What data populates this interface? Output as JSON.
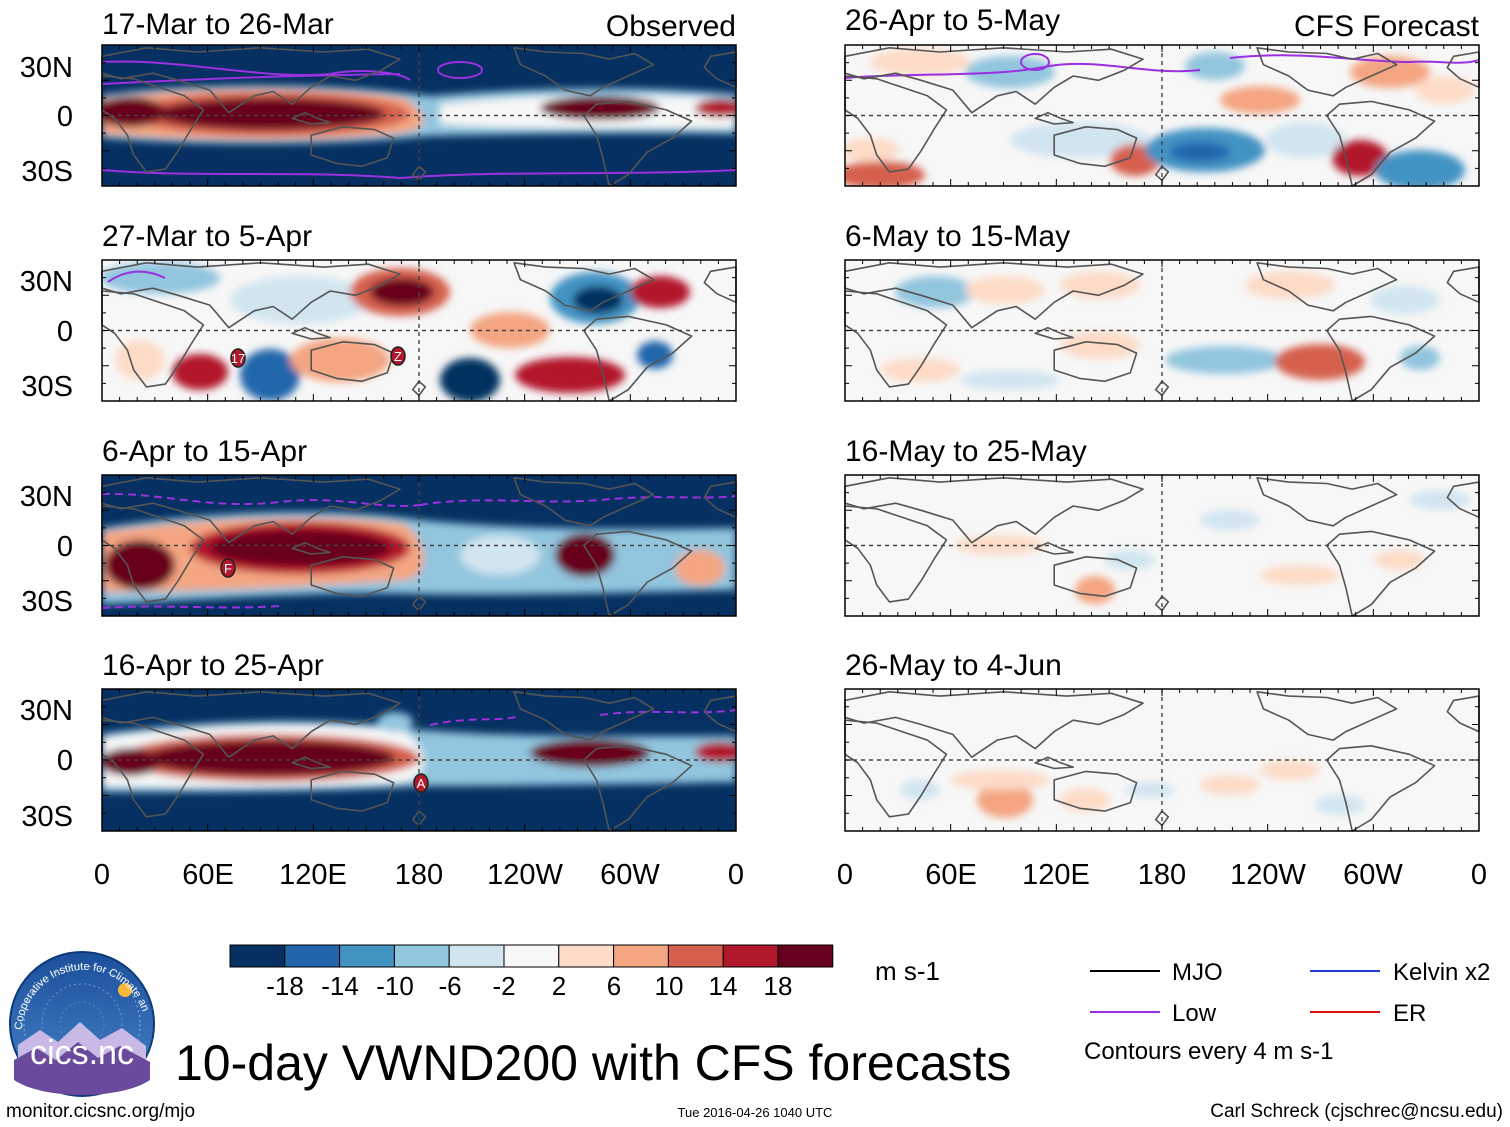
{
  "figure": {
    "main_title": "10-day VWND200 with CFS forecasts",
    "observed_label": "Observed",
    "forecast_label": "CFS Forecast",
    "footer_left": "monitor.cicsnc.org/mjo",
    "footer_center": "Tue 2016-04-26 1040 UTC",
    "footer_right": "Carl Schreck (cjschrec@ncsu.edu)",
    "logo_text": "cics.nc",
    "logo_arc_text": "Cooperative Institute for Climate and Satellites"
  },
  "axes": {
    "lat_labels": [
      "30N",
      "0",
      "30S"
    ],
    "lon_labels": [
      "0",
      "60E",
      "120E",
      "180",
      "120W",
      "60W",
      "0"
    ]
  },
  "panels": {
    "observed": [
      {
        "period": "17-Mar to 26-Mar",
        "storms": []
      },
      {
        "period": "27-Mar to 5-Apr",
        "storms": [
          "17",
          "Z"
        ]
      },
      {
        "period": "6-Apr to 15-Apr",
        "storms": [
          "F"
        ]
      },
      {
        "period": "16-Apr to 25-Apr",
        "storms": [
          "A"
        ]
      }
    ],
    "forecast": [
      {
        "period": "26-Apr to 5-May"
      },
      {
        "period": "6-May to 15-May"
      },
      {
        "period": "16-May to 25-May"
      },
      {
        "period": "26-May to 4-Jun"
      }
    ]
  },
  "colorbar": {
    "units": "m s-1",
    "tick_labels": [
      "-18",
      "-14",
      "-10",
      "-6",
      "-2",
      "2",
      "6",
      "10",
      "14",
      "18"
    ],
    "colors": [
      "#053061",
      "#2166ac",
      "#4393c3",
      "#92c5de",
      "#d1e5f0",
      "#f7f7f7",
      "#fddbc7",
      "#f4a582",
      "#d6604d",
      "#b2182b",
      "#67001f"
    ]
  },
  "legend": {
    "items": [
      {
        "label": "MJO",
        "color": "#000000"
      },
      {
        "label": "Kelvin x2",
        "color": "#1f3fd1"
      },
      {
        "label": "Low",
        "color": "#9b30e0"
      },
      {
        "label": "ER",
        "color": "#e01010"
      }
    ],
    "contour_note": "Contours every 4 m s-1"
  }
}
